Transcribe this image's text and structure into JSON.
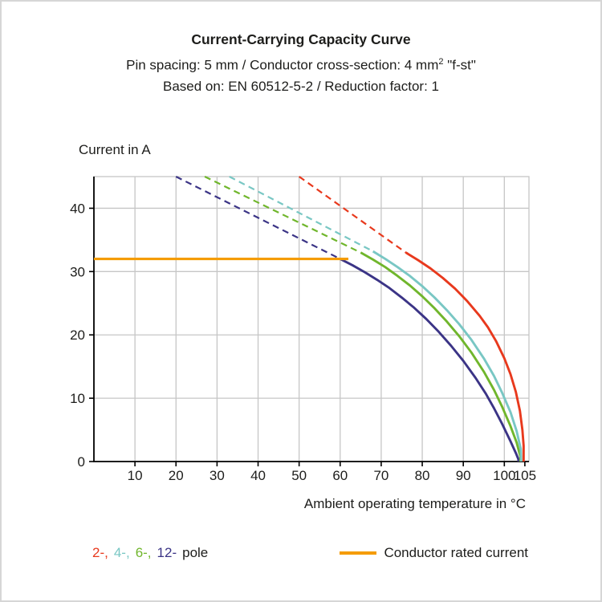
{
  "header": {
    "title": "Current-Carrying Capacity Curve",
    "subtitle_prefix": "Pin spacing: 5 mm / Conductor cross-section: 4 mm",
    "subtitle_sup": "2",
    "subtitle_suffix": " \"f-st\"",
    "subtitle2": "Based on: EN 60512-5-2 / Reduction factor: 1"
  },
  "chart_data": {
    "type": "line",
    "title": "Current-Carrying Capacity Curve",
    "xlabel": "Ambient operating temperature in °C",
    "ylabel": "Current in A",
    "xlim": [
      0,
      106
    ],
    "ylim": [
      0,
      45
    ],
    "xticks": [
      10,
      20,
      30,
      40,
      50,
      60,
      70,
      80,
      90,
      100,
      105
    ],
    "yticks": [
      0,
      10,
      20,
      30,
      40
    ],
    "grid": true,
    "legend_position": "bottom",
    "colors": {
      "pole2": "#e8391d",
      "pole4": "#79c7c4",
      "pole6": "#70b62c",
      "pole12": "#3b3486",
      "rated": "#f59c00",
      "gridline": "#c6c6c6",
      "axis": "#000000"
    },
    "series": [
      {
        "name": "12-pole",
        "color": "#3b3486",
        "dashed": [
          [
            20,
            45
          ],
          [
            60,
            32
          ]
        ],
        "solid": [
          [
            60,
            32
          ],
          [
            63,
            31
          ],
          [
            66,
            29.9
          ],
          [
            69,
            28.7
          ],
          [
            72,
            27.4
          ],
          [
            75,
            25.9
          ],
          [
            78,
            24.3
          ],
          [
            81,
            22.5
          ],
          [
            84,
            20.5
          ],
          [
            87,
            18.3
          ],
          [
            90,
            15.9
          ],
          [
            93,
            13.2
          ],
          [
            95.5,
            10.7
          ],
          [
            97.5,
            8.4
          ],
          [
            99.5,
            5.9
          ],
          [
            101.5,
            3.2
          ],
          [
            102.9,
            1.2
          ],
          [
            103.4,
            0.4
          ],
          [
            103.5,
            0
          ]
        ]
      },
      {
        "name": "6-pole",
        "color": "#70b62c",
        "dashed": [
          [
            27,
            45
          ],
          [
            65,
            33
          ]
        ],
        "solid": [
          [
            65,
            33
          ],
          [
            68,
            31.9
          ],
          [
            71,
            30.7
          ],
          [
            74,
            29.3
          ],
          [
            77,
            27.8
          ],
          [
            80,
            26.1
          ],
          [
            83,
            24.2
          ],
          [
            86,
            22.1
          ],
          [
            89,
            19.8
          ],
          [
            92,
            17.2
          ],
          [
            95,
            14.2
          ],
          [
            97.5,
            11.3
          ],
          [
            99.5,
            8.6
          ],
          [
            101.5,
            5.6
          ],
          [
            103,
            3
          ],
          [
            103.9,
            0.8
          ],
          [
            103.9,
            0
          ]
        ]
      },
      {
        "name": "4-pole",
        "color": "#79c7c4",
        "dashed": [
          [
            33,
            45
          ],
          [
            68,
            33.2
          ]
        ],
        "solid": [
          [
            68,
            33.2
          ],
          [
            71,
            32
          ],
          [
            74,
            30.7
          ],
          [
            77,
            29.3
          ],
          [
            80,
            27.7
          ],
          [
            83,
            25.9
          ],
          [
            86,
            23.9
          ],
          [
            89,
            21.7
          ],
          [
            92,
            19.2
          ],
          [
            95,
            16.3
          ],
          [
            97.5,
            13.5
          ],
          [
            99.5,
            10.8
          ],
          [
            101.5,
            7.8
          ],
          [
            103,
            4.8
          ],
          [
            104,
            2
          ],
          [
            104.1,
            0
          ]
        ]
      },
      {
        "name": "2-pole",
        "color": "#e8391d",
        "dashed": [
          [
            50,
            45
          ],
          [
            76,
            33
          ]
        ],
        "solid": [
          [
            76,
            33
          ],
          [
            79,
            31.8
          ],
          [
            82,
            30.5
          ],
          [
            85,
            29
          ],
          [
            88,
            27.3
          ],
          [
            91,
            25.3
          ],
          [
            94,
            23
          ],
          [
            96,
            21.2
          ],
          [
            98,
            19
          ],
          [
            100,
            16.3
          ],
          [
            101.5,
            13.8
          ],
          [
            102.8,
            11
          ],
          [
            103.8,
            8
          ],
          [
            104.4,
            5
          ],
          [
            104.7,
            2.5
          ],
          [
            104.7,
            0
          ]
        ]
      },
      {
        "name": "Conductor rated current",
        "color": "#f59c00",
        "rated": true,
        "solid": [
          [
            0,
            32
          ],
          [
            62,
            32
          ]
        ]
      }
    ]
  },
  "legend": {
    "poles": [
      {
        "label": "2-,",
        "color": "#e8391d"
      },
      {
        "label": "4-,",
        "color": "#79c7c4"
      },
      {
        "label": "6-,",
        "color": "#70b62c"
      },
      {
        "label": "12-",
        "color": "#3b3486"
      },
      {
        "label": "pole",
        "color": "#1d1d1b"
      }
    ],
    "rated_label": "Conductor rated current"
  }
}
